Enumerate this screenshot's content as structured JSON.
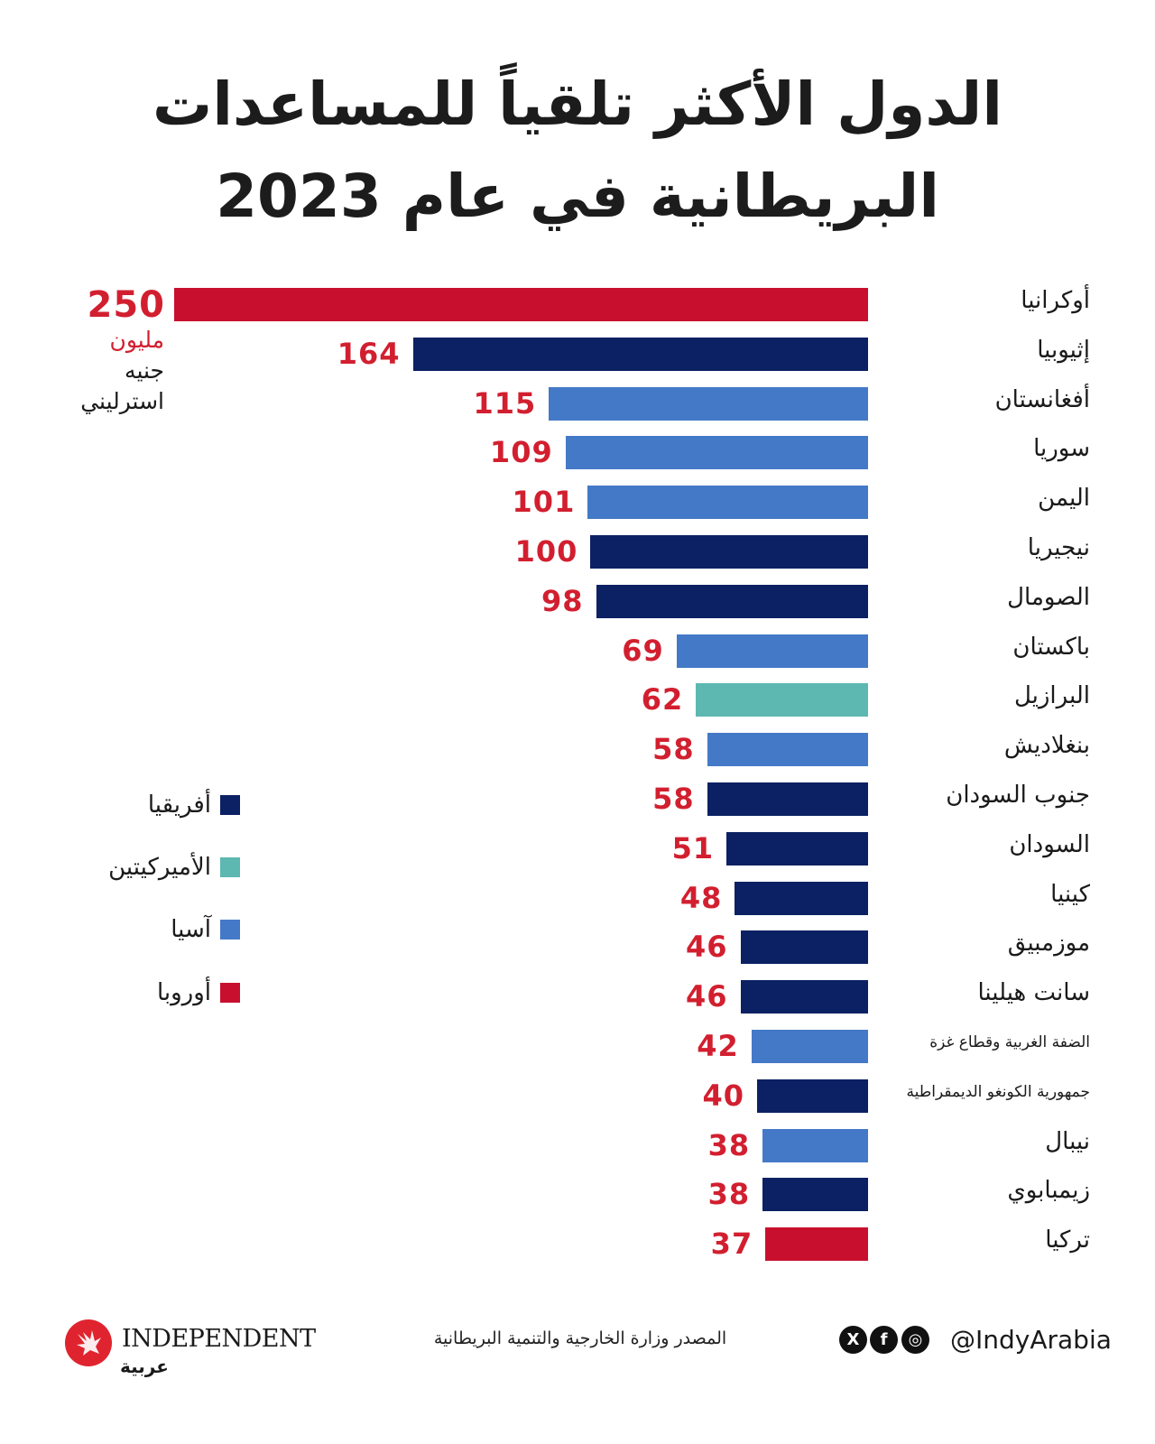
{
  "title": {
    "line1": "الدول الأكثر تلقياً للمساعدات",
    "line2": "البريطانية في عام 2023"
  },
  "colors": {
    "Africa": "#0b2163",
    "Americas": "#5db8b1",
    "Asia": "#4479c7",
    "Europe": "#c8102e",
    "value_text": "#d21f2f"
  },
  "unit_label": {
    "line1": "مليون",
    "line2": "جنيه",
    "line3": "استرليني"
  },
  "legend": [
    {
      "label": "أفريقيا",
      "region": "Africa"
    },
    {
      "label": "الأميركيتين",
      "region": "Americas"
    },
    {
      "label": "آسيا",
      "region": "Asia"
    },
    {
      "label": "أوروبا",
      "region": "Europe"
    }
  ],
  "chart_data": {
    "type": "bar",
    "orientation": "horizontal",
    "title": "الدول الأكثر تلقياً للمساعدات البريطانية في عام 2023",
    "unit": "مليون جنيه استرليني",
    "xlim": [
      0,
      250
    ],
    "grid": false,
    "legend_position": "left",
    "categories": [
      "أوكرانيا",
      "إثيوبيا",
      "أفغانستان",
      "سوريا",
      "اليمن",
      "نيجيريا",
      "الصومال",
      "باكستان",
      "البرازيل",
      "بنغلاديش",
      "جنوب السودان",
      "السودان",
      "كينيا",
      "موزمبيق",
      "سانت هيلينا",
      "الضفة الغربية وقطاع غزة",
      "جمهورية الكونغو الديمقراطية",
      "نيبال",
      "زيمبابوي",
      "تركيا"
    ],
    "values": [
      250,
      164,
      115,
      109,
      101,
      100,
      98,
      69,
      62,
      58,
      58,
      51,
      48,
      46,
      46,
      42,
      40,
      38,
      38,
      37
    ],
    "regions": [
      "Europe",
      "Africa",
      "Asia",
      "Asia",
      "Asia",
      "Africa",
      "Africa",
      "Asia",
      "Americas",
      "Asia",
      "Africa",
      "Africa",
      "Africa",
      "Africa",
      "Africa",
      "Asia",
      "Africa",
      "Asia",
      "Africa",
      "Europe"
    ],
    "value_labels": [
      "250",
      "164",
      "115",
      "109",
      "101",
      "100",
      "98",
      "69",
      "62",
      "58",
      "58",
      "51",
      "48",
      "46",
      "46",
      "42",
      "40",
      "38",
      "38",
      "37"
    ]
  },
  "footer": {
    "source": "المصدر وزارة الخارجية والتنمية البريطانية",
    "handle": "@IndyArabia",
    "social_icons": [
      "x-icon",
      "facebook-icon",
      "instagram-icon"
    ],
    "social_glyphs": [
      "X",
      "f",
      "◎"
    ],
    "logo_text": "INDEPENDENT",
    "logo_arabic": "عربية"
  }
}
